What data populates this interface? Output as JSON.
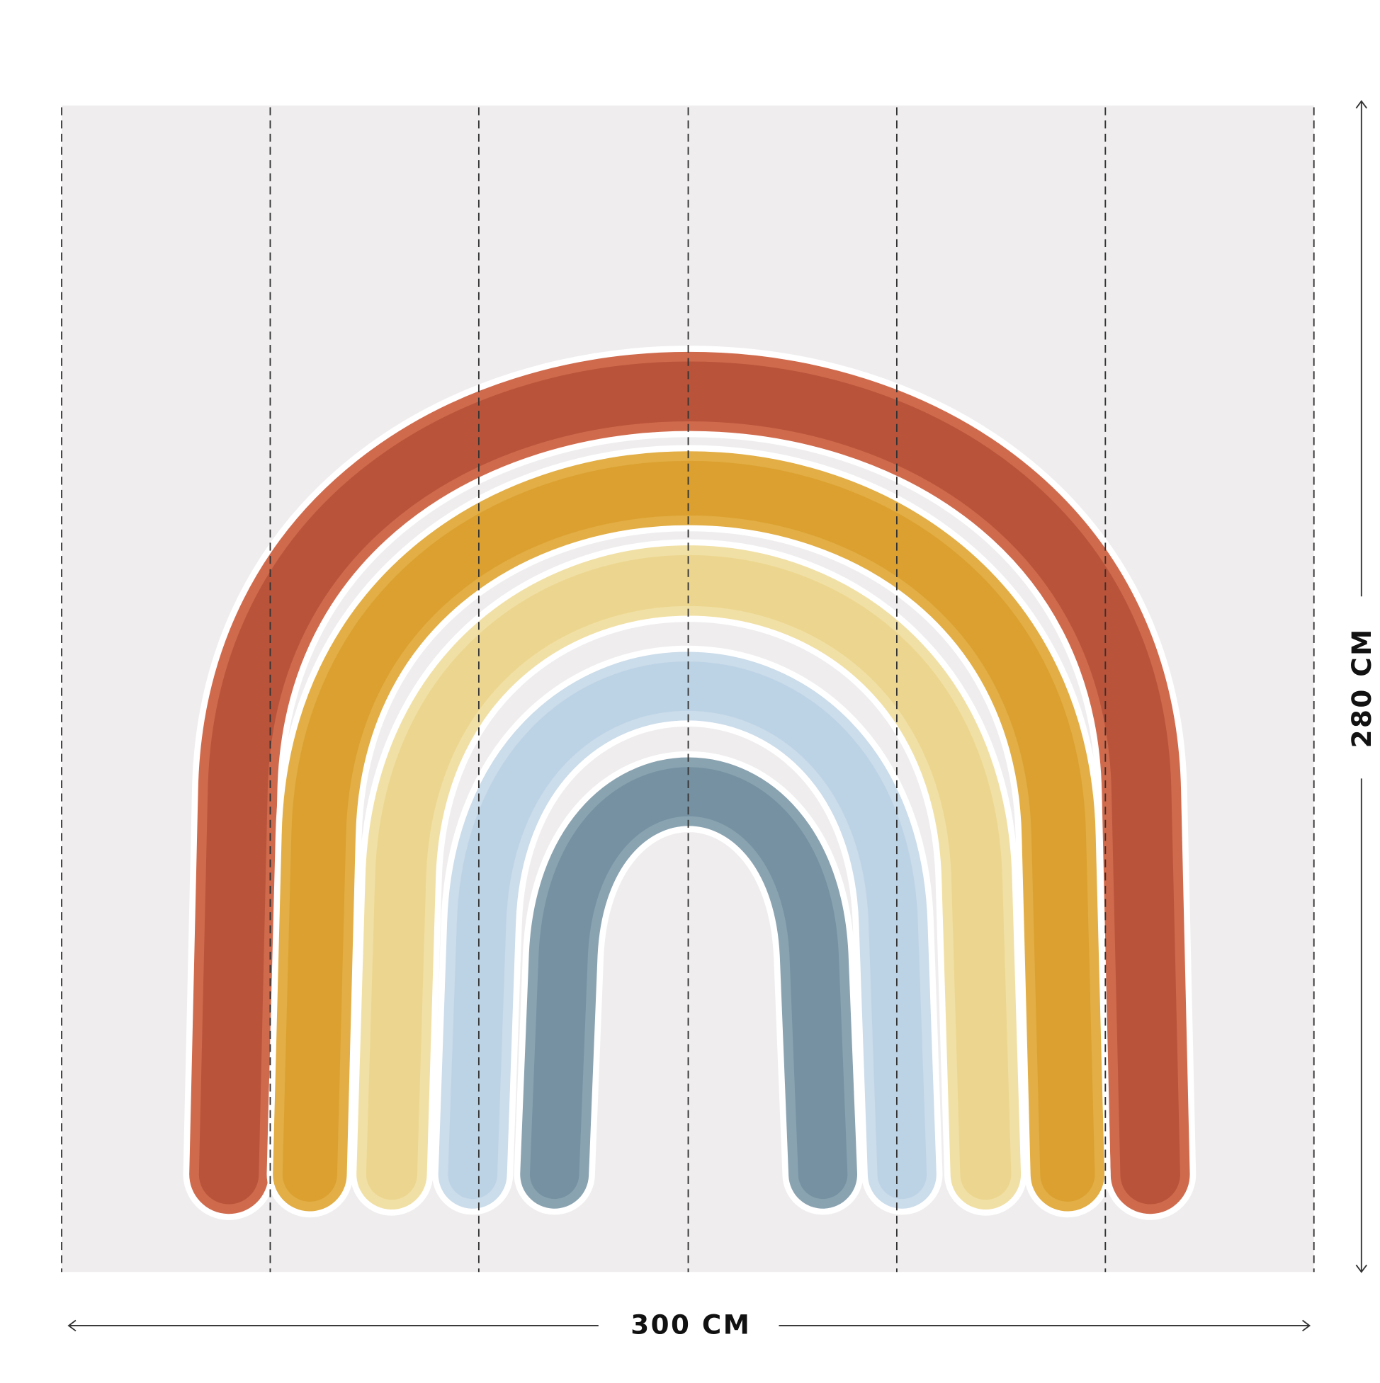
{
  "dimensions": {
    "width": "300 CM",
    "height": "280 CM"
  }
}
